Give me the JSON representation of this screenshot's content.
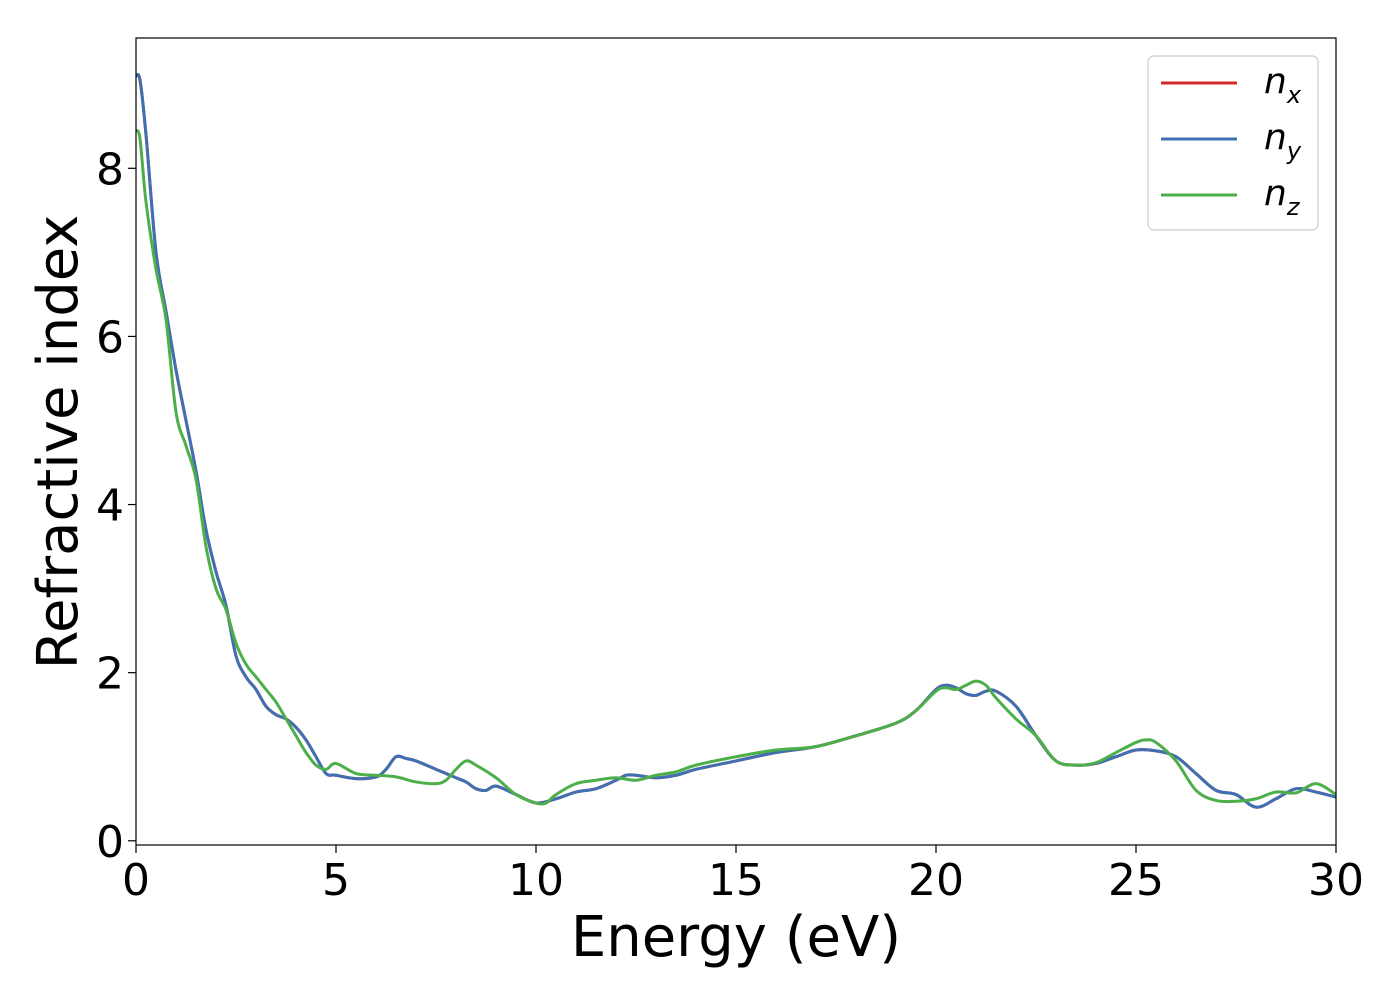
{
  "chart_data": {
    "type": "line",
    "title": "",
    "xlabel": "Energy (eV)",
    "ylabel": "Refractive index",
    "xlim": [
      0,
      30
    ],
    "ylim": [
      -0.05,
      9.55
    ],
    "xticks": [
      0,
      5,
      10,
      15,
      20,
      25,
      30
    ],
    "yticks": [
      0,
      2,
      4,
      6,
      8
    ],
    "grid": false,
    "legend_position": "top-right",
    "series": [
      {
        "name": "n_x",
        "label_base": "n",
        "label_sub": "x",
        "color": "#d62728",
        "x": [
          0.0,
          0.1,
          0.25,
          0.5,
          0.75,
          1.0,
          1.25,
          1.5,
          1.75,
          2.0,
          2.25,
          2.5,
          2.75,
          3.0,
          3.25,
          3.5,
          3.75,
          4.0,
          4.25,
          4.5,
          4.75,
          5.0,
          5.5,
          6.0,
          6.25,
          6.5,
          6.75,
          7.0,
          7.5,
          8.0,
          8.25,
          8.5,
          8.75,
          9.0,
          9.5,
          10.0,
          10.5,
          11.0,
          11.5,
          12.0,
          12.25,
          12.5,
          13.0,
          13.5,
          14.0,
          15.0,
          16.0,
          17.0,
          18.0,
          19.0,
          19.5,
          20.0,
          20.25,
          20.5,
          20.75,
          21.0,
          21.25,
          21.5,
          22.0,
          22.5,
          23.0,
          23.5,
          24.0,
          24.5,
          25.0,
          25.5,
          26.0,
          26.5,
          27.0,
          27.5,
          28.0,
          28.5,
          29.0,
          29.5,
          30.0
        ],
        "y": [
          9.1,
          9.05,
          8.4,
          7.0,
          6.3,
          5.6,
          5.0,
          4.4,
          3.7,
          3.2,
          2.8,
          2.2,
          1.95,
          1.8,
          1.6,
          1.5,
          1.45,
          1.35,
          1.2,
          1.0,
          0.8,
          0.78,
          0.74,
          0.76,
          0.85,
          1.0,
          0.98,
          0.95,
          0.85,
          0.75,
          0.7,
          0.62,
          0.6,
          0.65,
          0.55,
          0.45,
          0.5,
          0.58,
          0.62,
          0.72,
          0.78,
          0.78,
          0.75,
          0.78,
          0.85,
          0.95,
          1.05,
          1.12,
          1.25,
          1.4,
          1.55,
          1.8,
          1.85,
          1.82,
          1.75,
          1.73,
          1.78,
          1.78,
          1.6,
          1.25,
          0.95,
          0.9,
          0.92,
          1.0,
          1.08,
          1.07,
          1.0,
          0.8,
          0.6,
          0.55,
          0.4,
          0.5,
          0.62,
          0.58,
          0.52
        ]
      },
      {
        "name": "n_y",
        "label_base": "n",
        "label_sub": "y",
        "color": "#3e70b3",
        "x": [
          0.0,
          0.1,
          0.25,
          0.5,
          0.75,
          1.0,
          1.25,
          1.5,
          1.75,
          2.0,
          2.25,
          2.5,
          2.75,
          3.0,
          3.25,
          3.5,
          3.75,
          4.0,
          4.25,
          4.5,
          4.75,
          5.0,
          5.5,
          6.0,
          6.25,
          6.5,
          6.75,
          7.0,
          7.5,
          8.0,
          8.25,
          8.5,
          8.75,
          9.0,
          9.5,
          10.0,
          10.5,
          11.0,
          11.5,
          12.0,
          12.25,
          12.5,
          13.0,
          13.5,
          14.0,
          15.0,
          16.0,
          17.0,
          18.0,
          19.0,
          19.5,
          20.0,
          20.25,
          20.5,
          20.75,
          21.0,
          21.25,
          21.5,
          22.0,
          22.5,
          23.0,
          23.5,
          24.0,
          24.5,
          25.0,
          25.5,
          26.0,
          26.5,
          27.0,
          27.5,
          28.0,
          28.5,
          29.0,
          29.5,
          30.0
        ],
        "y": [
          9.1,
          9.05,
          8.4,
          7.0,
          6.3,
          5.6,
          5.0,
          4.4,
          3.7,
          3.2,
          2.8,
          2.2,
          1.95,
          1.8,
          1.6,
          1.5,
          1.45,
          1.35,
          1.2,
          1.0,
          0.8,
          0.78,
          0.74,
          0.76,
          0.85,
          1.0,
          0.98,
          0.95,
          0.85,
          0.75,
          0.7,
          0.62,
          0.6,
          0.65,
          0.55,
          0.45,
          0.5,
          0.58,
          0.62,
          0.72,
          0.78,
          0.78,
          0.75,
          0.78,
          0.85,
          0.95,
          1.05,
          1.12,
          1.25,
          1.4,
          1.55,
          1.8,
          1.85,
          1.82,
          1.75,
          1.73,
          1.78,
          1.78,
          1.6,
          1.25,
          0.95,
          0.9,
          0.92,
          1.0,
          1.08,
          1.07,
          1.0,
          0.8,
          0.6,
          0.55,
          0.4,
          0.5,
          0.62,
          0.58,
          0.52
        ]
      },
      {
        "name": "n_z",
        "label_base": "n",
        "label_sub": "z",
        "color": "#4daf4a",
        "x": [
          0.0,
          0.1,
          0.25,
          0.5,
          0.75,
          1.0,
          1.25,
          1.5,
          1.75,
          2.0,
          2.25,
          2.5,
          2.75,
          3.0,
          3.25,
          3.5,
          3.75,
          4.0,
          4.25,
          4.5,
          4.75,
          5.0,
          5.5,
          6.0,
          6.5,
          7.0,
          7.5,
          7.75,
          8.0,
          8.25,
          8.5,
          9.0,
          9.5,
          10.0,
          10.25,
          10.5,
          11.0,
          11.5,
          12.0,
          12.5,
          13.0,
          13.5,
          14.0,
          15.0,
          16.0,
          17.0,
          18.0,
          19.0,
          19.5,
          20.0,
          20.25,
          20.5,
          20.75,
          21.0,
          21.25,
          21.5,
          22.0,
          22.5,
          23.0,
          23.5,
          24.0,
          24.5,
          25.0,
          25.25,
          25.5,
          26.0,
          26.5,
          27.0,
          27.5,
          28.0,
          28.5,
          29.0,
          29.5,
          30.0
        ],
        "y": [
          8.45,
          8.35,
          7.6,
          6.8,
          6.2,
          5.1,
          4.7,
          4.3,
          3.5,
          3.0,
          2.75,
          2.35,
          2.1,
          1.95,
          1.8,
          1.65,
          1.45,
          1.25,
          1.05,
          0.9,
          0.85,
          0.92,
          0.8,
          0.78,
          0.76,
          0.7,
          0.68,
          0.72,
          0.85,
          0.95,
          0.9,
          0.75,
          0.55,
          0.45,
          0.45,
          0.55,
          0.68,
          0.72,
          0.75,
          0.72,
          0.78,
          0.82,
          0.9,
          1.0,
          1.08,
          1.12,
          1.25,
          1.4,
          1.55,
          1.78,
          1.82,
          1.8,
          1.85,
          1.9,
          1.85,
          1.7,
          1.45,
          1.25,
          0.95,
          0.9,
          0.93,
          1.05,
          1.17,
          1.2,
          1.17,
          0.95,
          0.6,
          0.48,
          0.47,
          0.5,
          0.58,
          0.57,
          0.68,
          0.55
        ]
      }
    ]
  }
}
